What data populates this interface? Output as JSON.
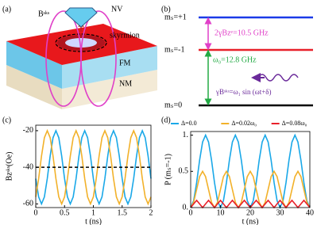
{
  "diagram_a": {
    "label": "(a)",
    "field": "Bˢᵏˢ",
    "nv": "NV",
    "skyrmion": "skyrmion",
    "layers": [
      "FM",
      "NM"
    ]
  },
  "diagram_b": {
    "label": "(b)",
    "levels": [
      "mₛ=+1",
      "mₛ=-1",
      "mₛ=0"
    ],
    "zeeman": "2γBzᵉ=10.5 GHz",
    "transition": "ω₀=12.8 GHz",
    "drive": "γBˢᵏˢ=ω₁ sin (ωt+δ)"
  },
  "chart_data": [
    {
      "type": "line",
      "panel_label": "(c)",
      "xlabel": "t (ns)",
      "ylabel": "Bzˢᵏˢ(Oe)",
      "x": [
        0,
        0.05,
        0.1,
        0.15,
        0.2,
        0.25,
        0.3,
        0.35,
        0.4,
        0.45,
        0.5,
        0.55,
        0.6,
        0.65,
        0.7,
        0.75,
        0.8,
        0.85,
        0.9,
        0.95,
        1,
        1.05,
        1.1,
        1.15,
        1.2,
        1.25,
        1.3,
        1.35,
        1.4,
        1.45,
        1.5,
        1.55,
        1.6,
        1.65,
        1.7,
        1.75,
        1.8,
        1.85,
        1.9,
        1.95,
        2
      ],
      "xlim": [
        0,
        2
      ],
      "xticks": [
        0,
        0.5,
        1,
        1.5,
        2
      ],
      "ylim": [
        -62,
        -17
      ],
      "yticks": [
        -60,
        -40,
        -20
      ],
      "series": [
        {
          "color": "#1aa8e8",
          "values": [
            -46.18,
            -56.18,
            -60,
            -56.18,
            -46.18,
            -33.82,
            -23.82,
            -20,
            -23.82,
            -33.82,
            -46.18,
            -56.18,
            -60,
            -56.18,
            -46.18,
            -33.82,
            -23.82,
            -20,
            -23.82,
            -33.82,
            -46.18,
            -56.18,
            -60,
            -56.18,
            -46.18,
            -33.82,
            -23.82,
            -20,
            -23.82,
            -33.82,
            -46.18,
            -56.18,
            -60,
            -56.18,
            -46.18,
            -33.82,
            -23.82,
            -20,
            -23.82,
            -33.82,
            -46.18
          ]
        },
        {
          "color": "#f2b12a",
          "values": [
            -56.18,
            -46.18,
            -33.82,
            -23.82,
            -20,
            -23.82,
            -33.82,
            -46.18,
            -56.18,
            -60,
            -56.18,
            -46.18,
            -33.82,
            -23.82,
            -20,
            -23.82,
            -33.82,
            -46.18,
            -56.18,
            -60,
            -56.18,
            -46.18,
            -33.82,
            -23.82,
            -20,
            -23.82,
            -33.82,
            -46.18,
            -56.18,
            -60,
            -56.18,
            -46.18,
            -33.82,
            -23.82,
            -20,
            -23.82,
            -33.82,
            -46.18,
            -56.18,
            -60,
            -56.18
          ]
        },
        {
          "color": "#000000",
          "dash": true,
          "values": [
            -40,
            -40,
            -40,
            -40,
            -40,
            -40,
            -40,
            -40,
            -40,
            -40,
            -40,
            -40,
            -40,
            -40,
            -40,
            -40,
            -40,
            -40,
            -40,
            -40,
            -40,
            -40,
            -40,
            -40,
            -40,
            -40,
            -40,
            -40,
            -40,
            -40,
            -40,
            -40,
            -40,
            -40,
            -40,
            -40,
            -40,
            -40,
            -40,
            -40,
            -40
          ]
        }
      ]
    },
    {
      "type": "line",
      "panel_label": "(d)",
      "xlabel": "t (ns)",
      "ylabel": "P (mₛ=-1)",
      "legend": "top",
      "x": [
        0,
        1,
        2,
        3,
        4,
        5,
        6,
        7,
        8,
        9,
        10,
        11,
        12,
        13,
        14,
        15,
        16,
        17,
        18,
        19,
        20,
        21,
        22,
        23,
        24,
        25,
        26,
        27,
        28,
        29,
        30,
        31,
        32,
        33,
        34,
        35,
        36,
        37,
        38,
        39,
        40
      ],
      "xlim": [
        0,
        40
      ],
      "xticks": [
        0,
        10,
        20,
        30,
        40
      ],
      "ylim": [
        0,
        1.05
      ],
      "yticks": [
        {
          "value": 0,
          "label": "0."
        },
        0.5,
        {
          "value": 1,
          "label": "1."
        }
      ],
      "series": [
        {
          "name": "Δ=0.0",
          "color": "#1aa8e8",
          "values": [
            0,
            0.095,
            0.345,
            0.655,
            0.905,
            1,
            0.905,
            0.655,
            0.345,
            0.095,
            0,
            0.095,
            0.345,
            0.655,
            0.905,
            1,
            0.905,
            0.655,
            0.345,
            0.095,
            0,
            0.095,
            0.345,
            0.655,
            0.905,
            1,
            0.905,
            0.655,
            0.345,
            0.095,
            0,
            0.095,
            0.345,
            0.655,
            0.905,
            1,
            0.905,
            0.655,
            0.345,
            0.095,
            0
          ]
        },
        {
          "name": "Δ=0.02ω₀",
          "color": "#f2b12a",
          "values": [
            0,
            0.073,
            0.25,
            0.427,
            0.5,
            0.427,
            0.25,
            0.073,
            0,
            0.073,
            0.25,
            0.427,
            0.5,
            0.427,
            0.25,
            0.073,
            0,
            0.073,
            0.25,
            0.427,
            0.5,
            0.427,
            0.25,
            0.073,
            0,
            0.073,
            0.25,
            0.427,
            0.5,
            0.427,
            0.25,
            0.073,
            0,
            0.073,
            0.25,
            0.427,
            0.5,
            0.427,
            0.25,
            0.073,
            0
          ]
        },
        {
          "name": "Δ=0.08ω₀",
          "color": "#e8202a",
          "values": [
            0,
            0.05,
            0.1,
            0.05,
            0,
            0.05,
            0.1,
            0.05,
            0,
            0.05,
            0.1,
            0.05,
            0,
            0.05,
            0.1,
            0.05,
            0,
            0.05,
            0.1,
            0.05,
            0,
            0.05,
            0.1,
            0.05,
            0,
            0.05,
            0.1,
            0.05,
            0,
            0.05,
            0.1,
            0.05,
            0,
            0.05,
            0.1,
            0.05,
            0,
            0.05,
            0.1,
            0.05,
            0
          ]
        }
      ]
    }
  ]
}
